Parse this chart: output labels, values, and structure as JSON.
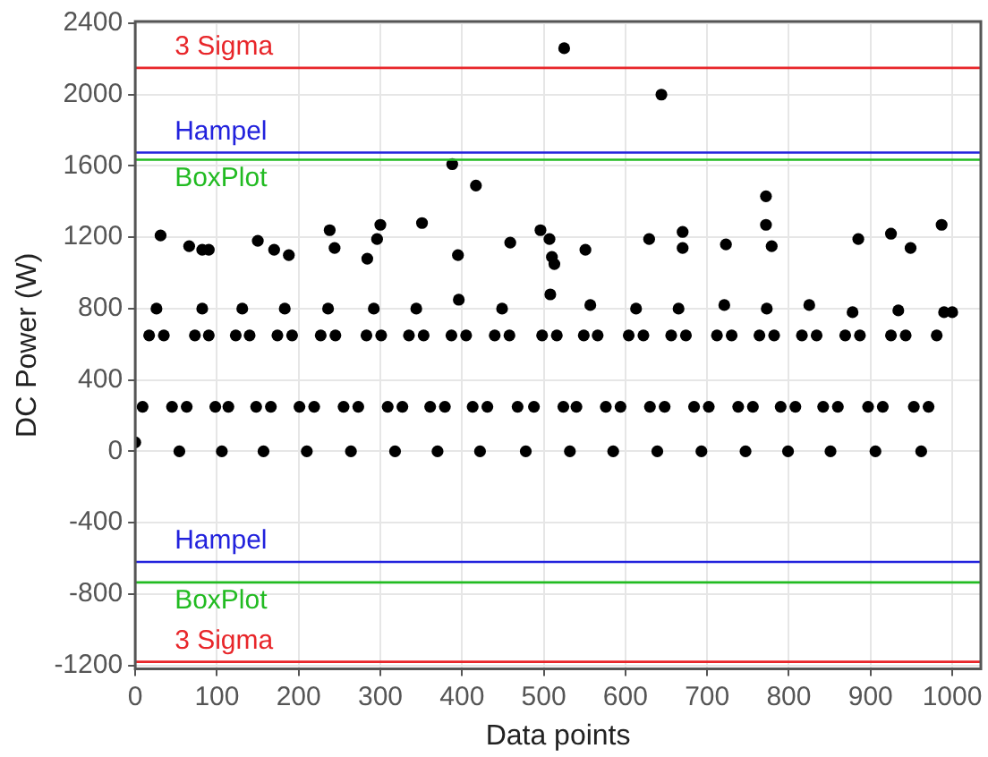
{
  "chart_data": {
    "type": "scatter",
    "xlabel": "Data points",
    "ylabel": "DC Power (W)",
    "xlim": [
      0,
      1035
    ],
    "ylim": [
      -1220,
      2410
    ],
    "xticks": [
      0,
      100,
      200,
      300,
      400,
      500,
      600,
      700,
      800,
      900,
      1000
    ],
    "yticks": [
      -1200,
      -800,
      -400,
      0,
      400,
      800,
      1200,
      1600,
      2000,
      2400
    ],
    "grid": true,
    "marker": "circle",
    "legend": false,
    "ref_lines": [
      {
        "axis": "y",
        "value": 2150,
        "label": "3 Sigma",
        "color": "#e8262a"
      },
      {
        "axis": "y",
        "value": 1675,
        "label": "Hampel",
        "color": "#2222dd"
      },
      {
        "axis": "y",
        "value": 1635,
        "label": "BoxPlot",
        "color": "#22bb22"
      },
      {
        "axis": "y",
        "value": -620,
        "label": "Hampel",
        "color": "#2222dd"
      },
      {
        "axis": "y",
        "value": -735,
        "label": "BoxPlot",
        "color": "#22bb22"
      },
      {
        "axis": "y",
        "value": -1180,
        "label": "3 Sigma",
        "color": "#e8262a"
      }
    ],
    "series": [
      {
        "color": "#000000",
        "x": [
          0,
          9,
          17,
          26,
          35,
          45,
          54,
          63,
          73,
          82,
          90,
          98,
          106,
          114,
          123,
          131,
          140,
          148,
          157,
          166,
          174,
          183,
          192,
          201,
          210,
          219,
          227,
          236,
          245,
          255,
          264,
          273,
          283,
          292,
          301,
          309,
          318,
          327,
          335,
          344,
          353,
          361,
          370,
          379,
          387,
          396,
          405,
          413,
          422,
          431,
          440,
          449,
          458,
          468,
          478,
          488,
          498,
          508,
          516,
          524,
          532,
          540,
          549,
          557,
          566,
          576,
          585,
          594,
          604,
          613,
          622,
          630,
          639,
          648,
          656,
          665,
          674,
          684,
          693,
          702,
          712,
          721,
          730,
          738,
          747,
          756,
          764,
          773,
          782,
          790,
          799,
          808,
          816,
          825,
          834,
          842,
          851,
          860,
          869,
          878,
          887,
          897,
          906,
          915,
          925,
          934,
          943,
          953,
          962,
          971,
          981,
          990,
          1000,
          525,
          644,
          388,
          417,
          31,
          66,
          82,
          90,
          150,
          170,
          188,
          238,
          244,
          284,
          296,
          300,
          351,
          395,
          459,
          496,
          507,
          510,
          513,
          551,
          629,
          670,
          670,
          723,
          772,
          772,
          779,
          885,
          925,
          949,
          987
        ],
        "values": [
          50,
          250,
          650,
          800,
          650,
          250,
          0,
          250,
          650,
          800,
          650,
          250,
          0,
          250,
          650,
          800,
          650,
          250,
          0,
          250,
          650,
          800,
          650,
          250,
          0,
          250,
          650,
          800,
          650,
          250,
          0,
          250,
          650,
          800,
          650,
          250,
          0,
          250,
          650,
          800,
          650,
          250,
          0,
          250,
          650,
          850,
          650,
          250,
          0,
          250,
          650,
          800,
          650,
          250,
          0,
          250,
          650,
          880,
          650,
          250,
          0,
          250,
          650,
          820,
          650,
          250,
          0,
          250,
          650,
          800,
          650,
          250,
          0,
          250,
          650,
          800,
          650,
          250,
          0,
          250,
          650,
          820,
          650,
          250,
          0,
          250,
          650,
          800,
          650,
          250,
          0,
          250,
          650,
          820,
          650,
          250,
          0,
          250,
          650,
          780,
          650,
          250,
          0,
          250,
          650,
          790,
          650,
          250,
          0,
          250,
          650,
          780,
          780,
          2260,
          2000,
          1610,
          1490,
          1210,
          1150,
          1130,
          1130,
          1180,
          1130,
          1100,
          1240,
          1140,
          1080,
          1190,
          1270,
          1280,
          1100,
          1170,
          1240,
          1190,
          1090,
          1050,
          1130,
          1190,
          1230,
          1140,
          1160,
          1430,
          1270,
          1150,
          1190,
          1220,
          1140,
          1270
        ]
      }
    ]
  }
}
